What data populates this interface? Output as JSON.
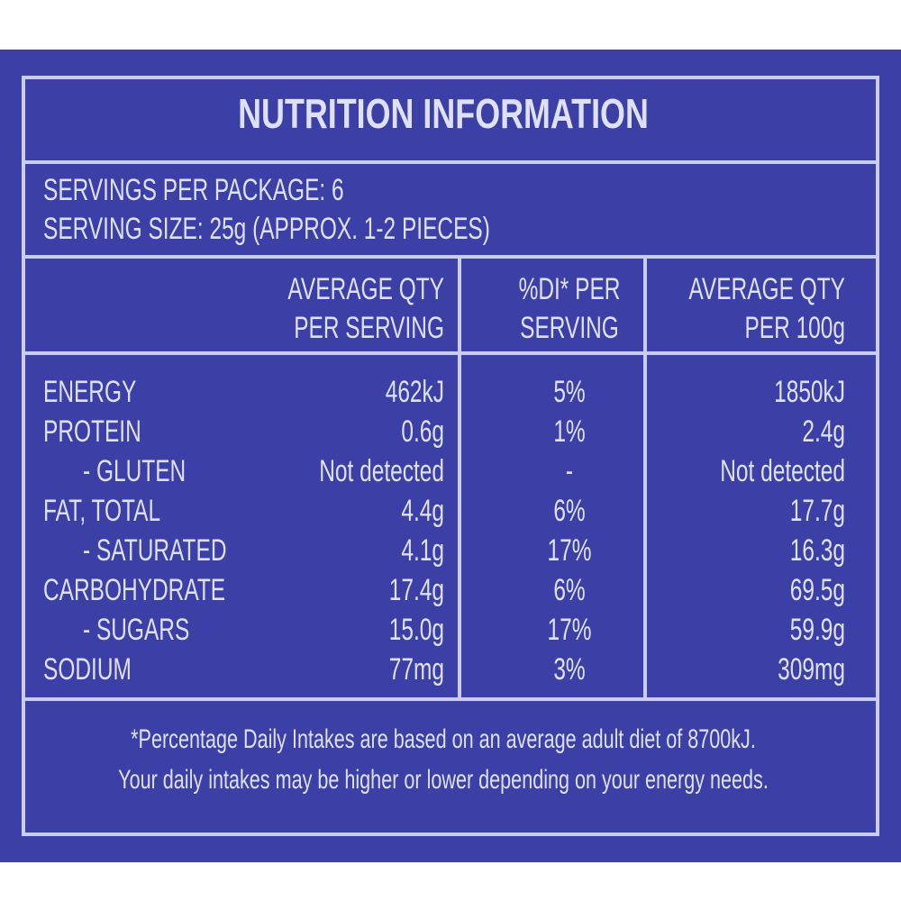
{
  "title": "NUTRITION INFORMATION",
  "servings": [
    "SERVINGS PER PACKAGE: 6",
    "SERVING SIZE: 25g (APPROX. 1-2 PIECES)"
  ],
  "table": {
    "headers": [
      [
        "AVERAGE QTY",
        "PER SERVING"
      ],
      [
        "%DI* PER",
        "SERVING"
      ],
      [
        "AVERAGE QTY",
        "PER 100g"
      ]
    ],
    "rows": [
      [
        "ENERGY",
        "462kJ",
        "5%",
        "1850kJ"
      ],
      [
        "PROTEIN",
        "0.6g",
        "1%",
        "2.4g"
      ],
      [
        "- GLUTEN",
        "Not detected",
        "-",
        "Not detected"
      ],
      [
        "FAT, TOTAL",
        "4.4g",
        "6%",
        "17.7g"
      ],
      [
        "- SATURATED",
        "4.1g",
        "17%",
        "16.3g"
      ],
      [
        "CARBOHYDRATE",
        "17.4g",
        "6%",
        "69.5g"
      ],
      [
        "- SUGARS",
        "15.0g",
        "17%",
        "59.9g"
      ],
      [
        "SODIUM",
        "77mg",
        "3%",
        "309mg"
      ]
    ]
  },
  "footnote": [
    "*Percentage Daily Intakes are based on an average adult diet of 8700kJ.",
    "Your daily intakes may be higher or lower depending on your energy needs."
  ]
}
